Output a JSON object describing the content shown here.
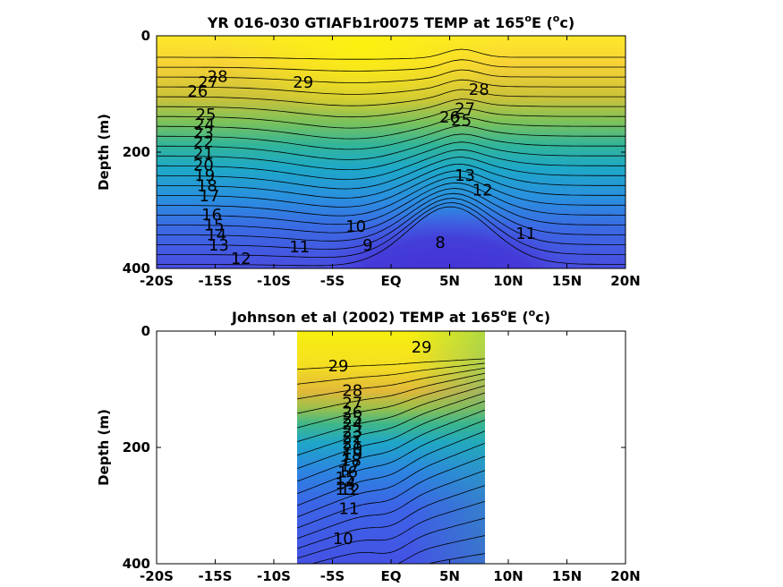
{
  "chart_data": [
    {
      "type": "contour",
      "title": "YR 016-030 GTIAFb1r0075 TEMP at 165",
      "title_sup1": "o",
      "title_mid": "E (",
      "title_sup2": "o",
      "title_end": "c)",
      "xlabel": "",
      "ylabel": "Depth (m)",
      "x_ticks": [
        "-20S",
        "-15S",
        "-10S",
        "-5S",
        "EQ",
        "5N",
        "10N",
        "15N",
        "20N"
      ],
      "x_values": [
        -20,
        -15,
        -10,
        -5,
        0,
        5,
        10,
        15,
        20
      ],
      "y_ticks": [
        "0",
        "200",
        "400"
      ],
      "y_values": [
        0,
        200,
        400
      ],
      "xlim": [
        -20,
        20
      ],
      "ylim": [
        0,
        400
      ],
      "data_xrange": [
        -20,
        20
      ],
      "contour_levels": [
        8,
        9,
        10,
        11,
        12,
        13,
        14,
        15,
        16,
        17,
        18,
        19,
        20,
        21,
        22,
        23,
        24,
        25,
        26,
        27,
        28,
        29
      ],
      "contour_labels": [
        {
          "text": "28",
          "x": -14.8,
          "y": 70
        },
        {
          "text": "27",
          "x": -15.6,
          "y": 80
        },
        {
          "text": "26",
          "x": -16.5,
          "y": 95
        },
        {
          "text": "25",
          "x": -15.8,
          "y": 135
        },
        {
          "text": "24",
          "x": -15.9,
          "y": 152
        },
        {
          "text": "23",
          "x": -16.0,
          "y": 167
        },
        {
          "text": "22",
          "x": -16.0,
          "y": 182
        },
        {
          "text": "21",
          "x": -16.0,
          "y": 202
        },
        {
          "text": "20",
          "x": -16.0,
          "y": 222
        },
        {
          "text": "19",
          "x": -15.9,
          "y": 240
        },
        {
          "text": "18",
          "x": -15.7,
          "y": 258
        },
        {
          "text": "17",
          "x": -15.5,
          "y": 275
        },
        {
          "text": "16",
          "x": -15.3,
          "y": 308
        },
        {
          "text": "15",
          "x": -15.1,
          "y": 325
        },
        {
          "text": "14",
          "x": -14.9,
          "y": 342
        },
        {
          "text": "13",
          "x": -14.7,
          "y": 360
        },
        {
          "text": "12",
          "x": -12.8,
          "y": 383
        },
        {
          "text": "11",
          "x": -7.8,
          "y": 363
        },
        {
          "text": "10",
          "x": -3.0,
          "y": 328
        },
        {
          "text": "9",
          "x": -2.0,
          "y": 360
        },
        {
          "text": "8",
          "x": 4.2,
          "y": 355
        },
        {
          "text": "11",
          "x": 11.5,
          "y": 340
        },
        {
          "text": "12",
          "x": 7.8,
          "y": 265
        },
        {
          "text": "13",
          "x": 6.3,
          "y": 240
        },
        {
          "text": "29",
          "x": -7.5,
          "y": 80
        },
        {
          "text": "28",
          "x": 7.5,
          "y": 92
        },
        {
          "text": "27",
          "x": 6.3,
          "y": 125
        },
        {
          "text": "26",
          "x": 5.0,
          "y": 140
        },
        {
          "text": "25",
          "x": 6.0,
          "y": 145
        }
      ]
    },
    {
      "type": "contour",
      "title": "Johnson et al (2002) TEMP at 165",
      "title_sup1": "o",
      "title_mid": "E (",
      "title_sup2": "o",
      "title_end": "c)",
      "xlabel": "",
      "ylabel": "Depth (m)",
      "x_ticks": [
        "-20S",
        "-15S",
        "-10S",
        "-5S",
        "EQ",
        "5N",
        "10N",
        "15N",
        "20N"
      ],
      "x_values": [
        -20,
        -15,
        -10,
        -5,
        0,
        5,
        10,
        15,
        20
      ],
      "y_ticks": [
        "0",
        "200",
        "400"
      ],
      "y_values": [
        0,
        200,
        400
      ],
      "xlim": [
        -20,
        20
      ],
      "ylim": [
        0,
        400
      ],
      "data_xrange": [
        -8,
        8
      ],
      "contour_levels": [
        10,
        11,
        12,
        13,
        14,
        15,
        16,
        17,
        18,
        19,
        20,
        21,
        22,
        23,
        24,
        25,
        26,
        27,
        28,
        29
      ],
      "contour_labels": [
        {
          "text": "29",
          "x": -4.5,
          "y": 60
        },
        {
          "text": "29",
          "x": 2.6,
          "y": 28
        },
        {
          "text": "28",
          "x": -3.3,
          "y": 102
        },
        {
          "text": "27",
          "x": -3.3,
          "y": 124
        },
        {
          "text": "26",
          "x": -3.3,
          "y": 139
        },
        {
          "text": "25",
          "x": -3.3,
          "y": 150
        },
        {
          "text": "24",
          "x": -3.3,
          "y": 160
        },
        {
          "text": "23",
          "x": -3.3,
          "y": 172
        },
        {
          "text": "22",
          "x": -3.3,
          "y": 182
        },
        {
          "text": "21",
          "x": -3.3,
          "y": 192
        },
        {
          "text": "20",
          "x": -3.3,
          "y": 202
        },
        {
          "text": "19",
          "x": -3.3,
          "y": 212
        },
        {
          "text": "18",
          "x": -3.4,
          "y": 222
        },
        {
          "text": "17",
          "x": -3.5,
          "y": 232
        },
        {
          "text": "16",
          "x": -3.7,
          "y": 242
        },
        {
          "text": "15",
          "x": -3.9,
          "y": 252
        },
        {
          "text": "14",
          "x": -3.9,
          "y": 262
        },
        {
          "text": "13",
          "x": -3.9,
          "y": 272
        },
        {
          "text": "12",
          "x": -3.5,
          "y": 272
        },
        {
          "text": "11",
          "x": -3.6,
          "y": 305
        },
        {
          "text": "10",
          "x": -4.1,
          "y": 357
        }
      ]
    }
  ],
  "colors": {
    "warm": "#f9fb0e",
    "mid": "#17b8b0",
    "cool": "#3e4bdc",
    "coldest": "#4135d4"
  }
}
